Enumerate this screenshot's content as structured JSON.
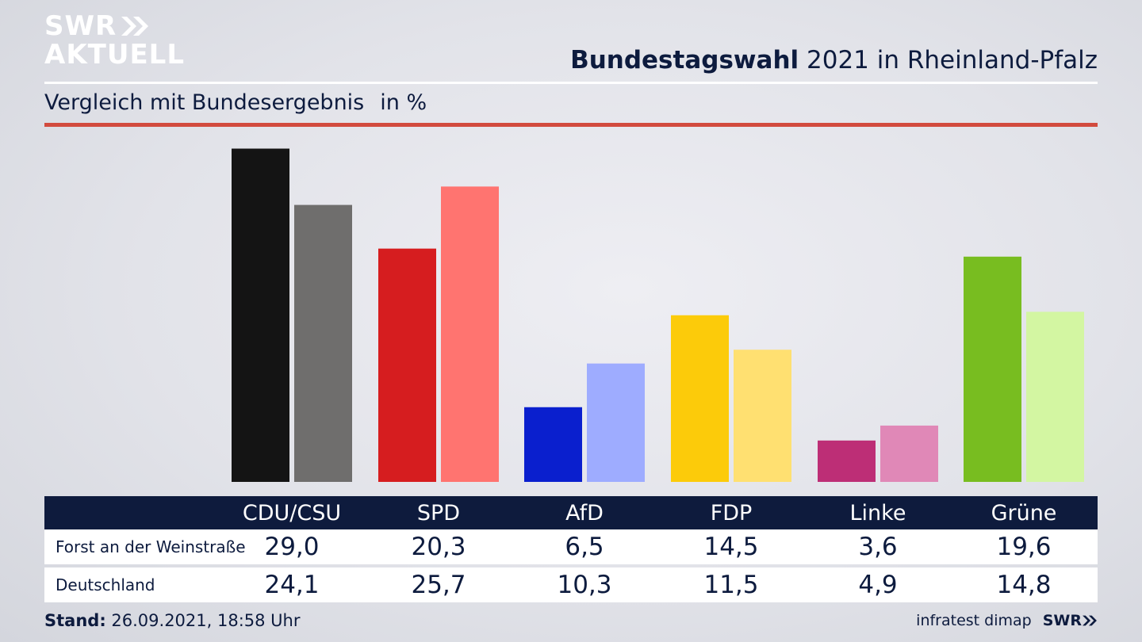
{
  "brand": {
    "line1": "SWR",
    "line2": "AKTUELL"
  },
  "header": {
    "title_bold": "Bundestagswahl",
    "title_rest": " 2021 in Rheinland-Pfalz"
  },
  "subtitle": {
    "text": "Vergleich mit Bundesergebnis",
    "unit": "in %"
  },
  "chart_data": {
    "type": "bar",
    "title": "Bundestagswahl 2021 in Rheinland-Pfalz",
    "subtitle": "Vergleich mit Bundesergebnis in %",
    "ylabel": "in %",
    "ylim": [
      0,
      30
    ],
    "categories": [
      "CDU/CSU",
      "SPD",
      "AfD",
      "FDP",
      "Linke",
      "Grüne"
    ],
    "series": [
      {
        "name": "Forst an der Weinstraße",
        "values": [
          29.0,
          20.3,
          6.5,
          14.5,
          3.6,
          19.6
        ],
        "colors": [
          "#141414",
          "#d61d1f",
          "#0a1fce",
          "#fccb0a",
          "#bd2e76",
          "#78bd20"
        ]
      },
      {
        "name": "Deutschland",
        "values": [
          24.1,
          25.7,
          10.3,
          11.5,
          4.9,
          14.8
        ],
        "colors": [
          "#6f6e6d",
          "#ff7470",
          "#9eacff",
          "#ffe071",
          "#e088b7",
          "#d3f6a2"
        ]
      }
    ]
  },
  "table": {
    "headers": [
      "CDU/CSU",
      "SPD",
      "AfD",
      "FDP",
      "Linke",
      "Grüne"
    ],
    "rows": [
      {
        "label": "Forst an der Weinstraße",
        "values": [
          "29,0",
          "20,3",
          "6,5",
          "14,5",
          "3,6",
          "19,6"
        ]
      },
      {
        "label": "Deutschland",
        "values": [
          "24,1",
          "25,7",
          "10,3",
          "11,5",
          "4,9",
          "14,8"
        ]
      }
    ]
  },
  "footer": {
    "stand_label": "Stand:",
    "stand_value": " 26.09.2021, 18:58 Uhr",
    "source": "infratest dimap",
    "logo": "SWR"
  }
}
